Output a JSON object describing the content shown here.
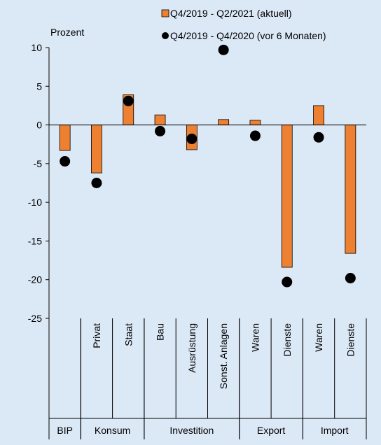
{
  "chart_data": {
    "type": "bar",
    "ylabel": "Prozent",
    "ylim": [
      -25,
      10
    ],
    "yticks": [
      10,
      5,
      0,
      -5,
      -10,
      -15,
      -20,
      -25
    ],
    "categories": [
      "BIP",
      "Privat",
      "Staat",
      "Bau",
      "Ausrüstung",
      "Sonst. Anlagen",
      "Waren",
      "Dienste",
      "Waren",
      "Dienste"
    ],
    "groups": [
      {
        "label": "BIP",
        "span": 1
      },
      {
        "label": "Konsum",
        "span": 2
      },
      {
        "label": "Investition",
        "span": 3
      },
      {
        "label": "Export",
        "span": 2
      },
      {
        "label": "Import",
        "span": 2
      }
    ],
    "series": [
      {
        "name": "Q4/2019 - Q2/2021 (aktuell)",
        "type": "bar",
        "color": "#ee8131",
        "values": [
          -3.3,
          -6.2,
          3.9,
          1.3,
          -3.2,
          0.7,
          0.6,
          -18.4,
          2.5,
          -16.6
        ]
      },
      {
        "name": "Q4/2019 - Q4/2020 (vor 6 Monaten)",
        "type": "scatter",
        "color": "#000000",
        "values": [
          -4.7,
          -7.5,
          3.1,
          -0.8,
          -1.8,
          9.7,
          -1.4,
          -20.3,
          -1.6,
          -19.8
        ]
      }
    ],
    "legend_position": "top-right",
    "grid": false
  }
}
